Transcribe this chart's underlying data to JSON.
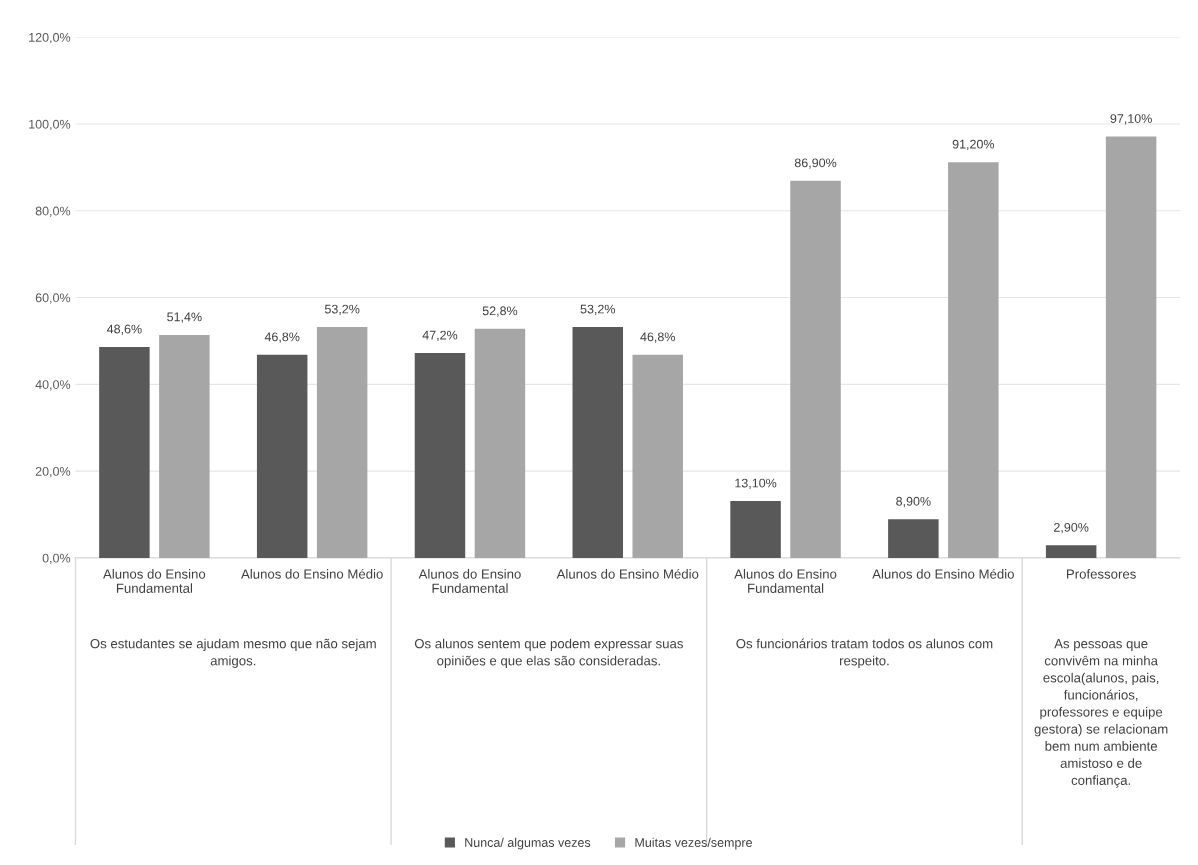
{
  "chart_data": {
    "type": "bar",
    "categories": [
      "Alunos do Ensino Fundamental",
      "Alunos do Ensino Médio",
      "Alunos do Ensino Fundamental",
      "Alunos do Ensino Médio",
      "Alunos do Ensino Fundamental",
      "Alunos do Ensino Médio",
      "Professores"
    ],
    "series": [
      {
        "name": "Nunca/ algumas vezes",
        "color": "#595959",
        "values": [
          48.6,
          46.8,
          47.2,
          53.2,
          13.1,
          8.9,
          2.9
        ],
        "value_labels": [
          "48,6%",
          "46,8%",
          "47,2%",
          "53,2%",
          "13,10%",
          "8,90%",
          "2,90%"
        ]
      },
      {
        "name": "Muitas vezes/sempre",
        "color": "#a6a6a6",
        "values": [
          51.4,
          53.2,
          52.8,
          46.8,
          86.9,
          91.2,
          97.1
        ],
        "value_labels": [
          "51,4%",
          "53,2%",
          "52,8%",
          "46,8%",
          "86,90%",
          "91,20%",
          "97,10%"
        ]
      }
    ],
    "annotations": [
      "Os estudantes se ajudam mesmo que não sejam amigos.",
      "Os alunos sentem que podem expressar suas opiniões e que elas são consideradas.",
      "Os funcionários tratam todos os alunos com respeito.",
      "As pessoas que convivêm na minha escola(alunos, pais, funcionários, professores e equipe gestora) se relacionam bem num ambiente amistoso e de confiança."
    ],
    "ylim": [
      0,
      120
    ],
    "yticks": [
      {
        "value": 0,
        "label": "0,0%"
      },
      {
        "value": 20,
        "label": "20,0%"
      },
      {
        "value": 40,
        "label": "40,0%"
      },
      {
        "value": 60,
        "label": "60,0%"
      },
      {
        "value": 80,
        "label": "80,0%"
      },
      {
        "value": 100,
        "label": "100,0%"
      },
      {
        "value": 120,
        "label": "120,0%"
      }
    ],
    "grid": "y",
    "legend": "bottom"
  }
}
